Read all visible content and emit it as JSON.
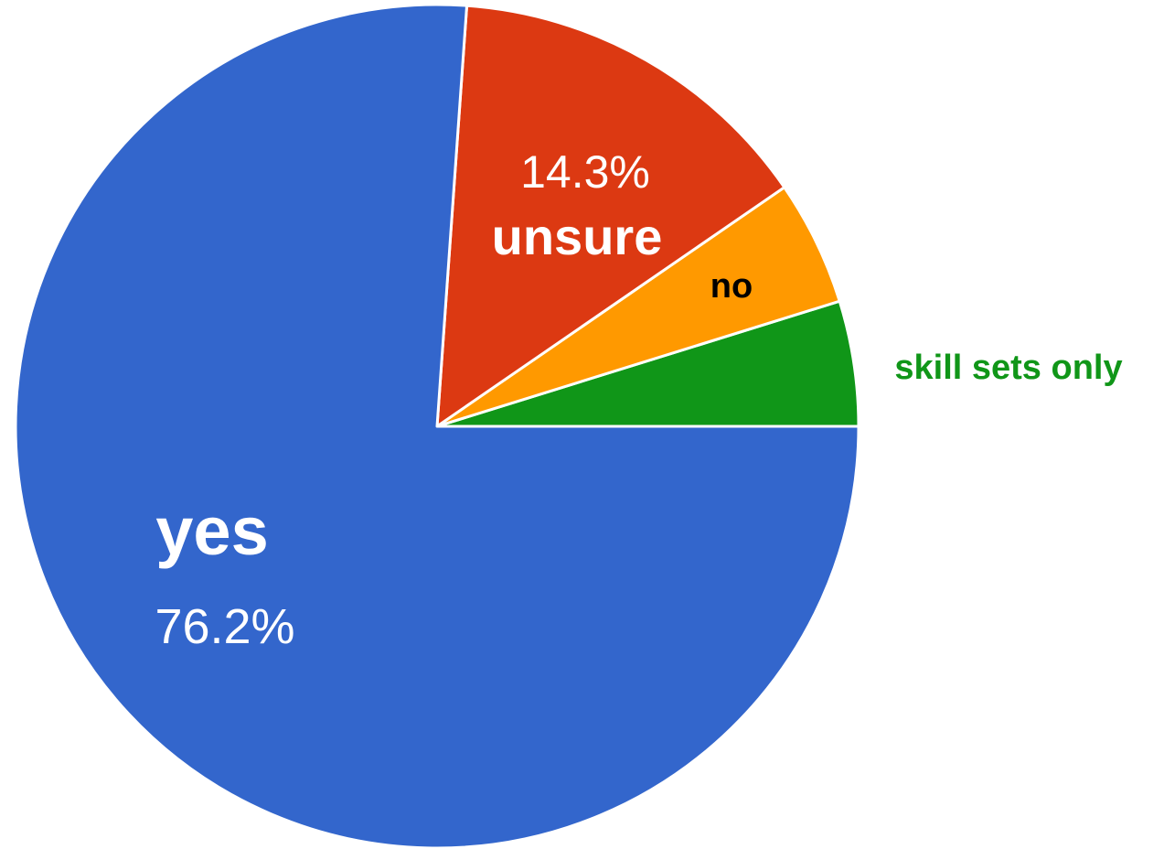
{
  "chart_data": {
    "type": "pie",
    "start_angle_deg": 0,
    "direction": "counterclockwise",
    "slices": [
      {
        "label": "skill sets only",
        "value": 4.8,
        "value_label": "",
        "color": "#109618",
        "label_color": "#109618",
        "label_placement": "outside"
      },
      {
        "label": "no",
        "value": 4.8,
        "value_label": "",
        "color": "#ff9900",
        "label_color": "#000000",
        "label_placement": "inside"
      },
      {
        "label": "unsure",
        "value": 14.3,
        "value_label": "14.3%",
        "color": "#dc3912",
        "label_color": "#ffffff",
        "label_placement": "inside"
      },
      {
        "label": "yes",
        "value": 76.2,
        "value_label": "76.2%",
        "color": "#3366cc",
        "label_color": "#ffffff",
        "label_placement": "inside"
      }
    ]
  }
}
